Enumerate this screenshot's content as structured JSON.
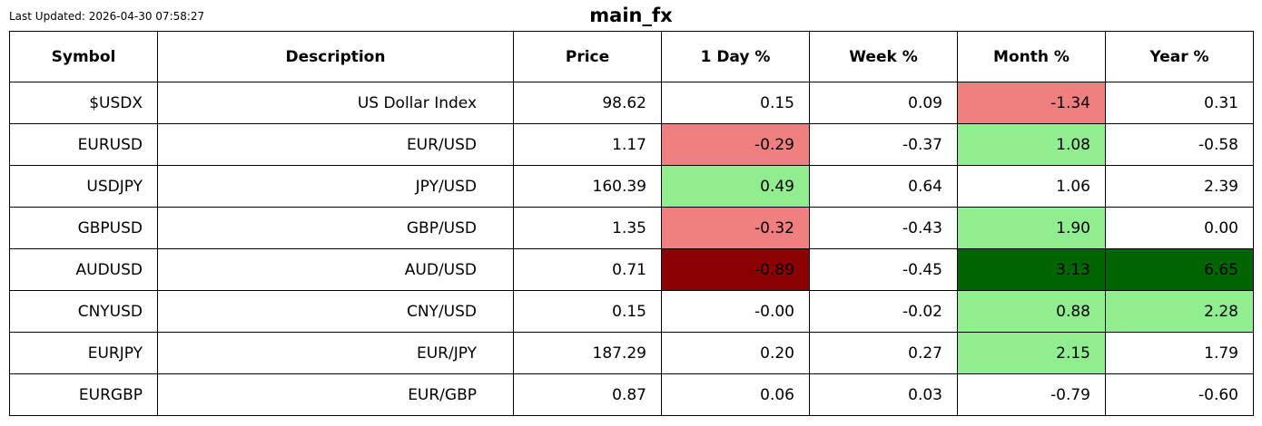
{
  "header": {
    "last_updated": "Last Updated: 2026-04-30 07:58:27",
    "title": "main_fx"
  },
  "colors": {
    "positive_light": "#90ee90",
    "negative_light": "#f08080",
    "positive_dark": "#006400",
    "negative_dark": "#8b0000"
  },
  "chart_data": {
    "type": "table",
    "title": "main_fx",
    "columns": [
      "Symbol",
      "Description",
      "Price",
      "1 Day %",
      "Week %",
      "Month %",
      "Year %"
    ],
    "rows": [
      {
        "cells": [
          "$USDX",
          "US Dollar Index",
          "98.62",
          "0.15",
          "0.09",
          "-1.34",
          "0.31"
        ],
        "shade": [
          "",
          "",
          "",
          "",
          "",
          "neg-light",
          ""
        ]
      },
      {
        "cells": [
          "EURUSD",
          "EUR/USD",
          "1.17",
          "-0.29",
          "-0.37",
          "1.08",
          "-0.58"
        ],
        "shade": [
          "",
          "",
          "",
          "neg-light",
          "",
          "pos-light",
          ""
        ]
      },
      {
        "cells": [
          "USDJPY",
          "JPY/USD",
          "160.39",
          "0.49",
          "0.64",
          "1.06",
          "2.39"
        ],
        "shade": [
          "",
          "",
          "",
          "pos-light",
          "",
          "",
          ""
        ]
      },
      {
        "cells": [
          "GBPUSD",
          "GBP/USD",
          "1.35",
          "-0.32",
          "-0.43",
          "1.90",
          "0.00"
        ],
        "shade": [
          "",
          "",
          "",
          "neg-light",
          "",
          "pos-light",
          ""
        ]
      },
      {
        "cells": [
          "AUDUSD",
          "AUD/USD",
          "0.71",
          "-0.89",
          "-0.45",
          "3.13",
          "6.65"
        ],
        "shade": [
          "",
          "",
          "",
          "neg-dark",
          "",
          "pos-dark",
          "pos-dark"
        ]
      },
      {
        "cells": [
          "CNYUSD",
          "CNY/USD",
          "0.15",
          "-0.00",
          "-0.02",
          "0.88",
          "2.28"
        ],
        "shade": [
          "",
          "",
          "",
          "",
          "",
          "pos-light",
          "pos-light"
        ]
      },
      {
        "cells": [
          "EURJPY",
          "EUR/JPY",
          "187.29",
          "0.20",
          "0.27",
          "2.15",
          "1.79"
        ],
        "shade": [
          "",
          "",
          "",
          "",
          "",
          "pos-light",
          ""
        ]
      },
      {
        "cells": [
          "EURGBP",
          "EUR/GBP",
          "0.87",
          "0.06",
          "0.03",
          "-0.79",
          "-0.60"
        ],
        "shade": [
          "",
          "",
          "",
          "",
          "",
          "",
          ""
        ]
      }
    ]
  }
}
